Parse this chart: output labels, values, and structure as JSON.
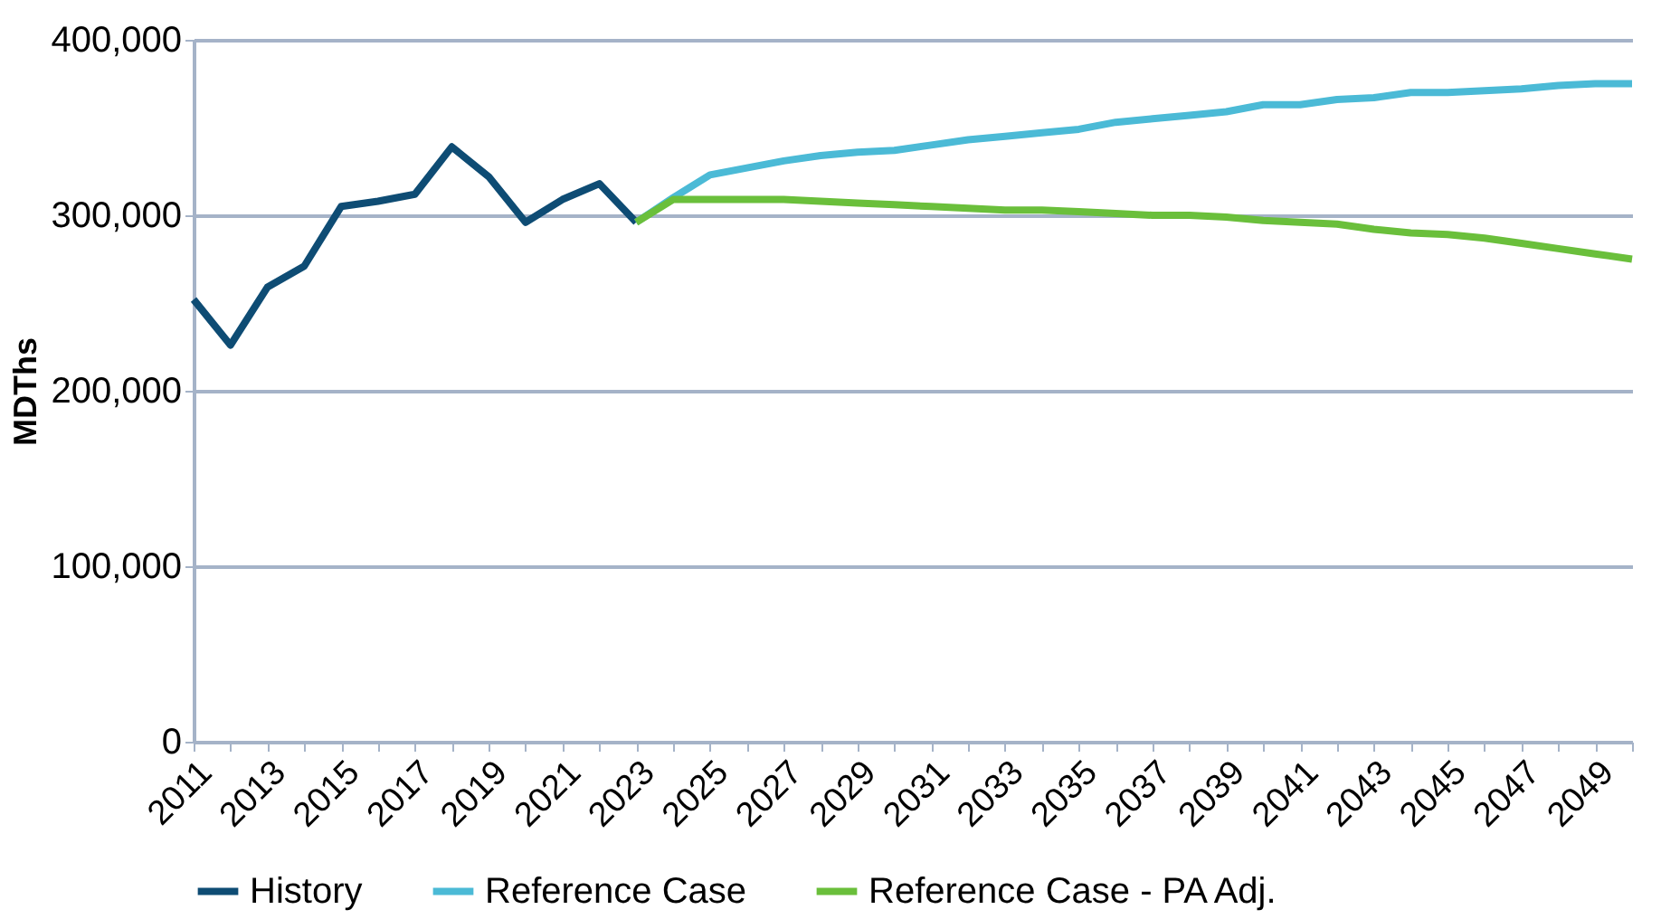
{
  "chart_data": {
    "type": "line",
    "ylabel": "MDThs",
    "categories": [
      "2011",
      null,
      "2013",
      null,
      "2015",
      null,
      "2017",
      null,
      "2019",
      null,
      "2021",
      null,
      "2023",
      null,
      "2025",
      null,
      "2027",
      null,
      "2029",
      null,
      "2031",
      null,
      "2033",
      null,
      "2035",
      null,
      "2037",
      null,
      "2039",
      null,
      "2041",
      null,
      "2043",
      null,
      "2045",
      null,
      "2047",
      null,
      "2049",
      null
    ],
    "series": [
      {
        "name": "History",
        "color": "#0e4c74",
        "values": [
          252000,
          226000,
          259000,
          271000,
          305000,
          308000,
          312000,
          339000,
          322000,
          296000,
          309000,
          318000,
          296000,
          null,
          null,
          null,
          null,
          null,
          null,
          null,
          null,
          null,
          null,
          null,
          null,
          null,
          null,
          null,
          null,
          null,
          null,
          null,
          null,
          null,
          null,
          null,
          null,
          null,
          null,
          null
        ]
      },
      {
        "name": "Reference Case",
        "color": "#4bbad6",
        "values": [
          null,
          null,
          null,
          null,
          null,
          null,
          null,
          null,
          null,
          null,
          null,
          null,
          296000,
          310000,
          323000,
          327000,
          331000,
          334000,
          336000,
          337000,
          340000,
          343000,
          345000,
          347000,
          349000,
          353000,
          355000,
          357000,
          359000,
          363000,
          363000,
          366000,
          367000,
          370000,
          370000,
          371000,
          372000,
          374000,
          375000,
          375000
        ]
      },
      {
        "name": "Reference Case - PA Adj.",
        "color": "#6abf3b",
        "values": [
          null,
          null,
          null,
          null,
          null,
          null,
          null,
          null,
          null,
          null,
          null,
          null,
          296000,
          309000,
          309000,
          309000,
          309000,
          308000,
          307000,
          306000,
          305000,
          304000,
          303000,
          303000,
          302000,
          301000,
          300000,
          300000,
          299000,
          297000,
          296000,
          295000,
          292000,
          290000,
          289000,
          287000,
          284000,
          281000,
          278000,
          275000
        ]
      }
    ],
    "ylim": [
      0,
      400000
    ],
    "yticks": [
      0,
      {
        "value": 100000,
        "label": "100,000"
      },
      {
        "value": 200000,
        "label": "200,000"
      },
      {
        "value": 300000,
        "label": "300,000"
      },
      {
        "value": 400000,
        "label": "400,000"
      }
    ],
    "grid": "y",
    "legend": "bottom",
    "marker": "none",
    "line_style": "solid"
  }
}
